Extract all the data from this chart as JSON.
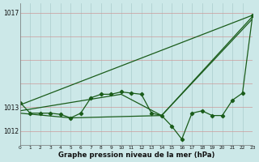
{
  "title": "Graphe pression niveau de la mer (hPa)",
  "bg_color": "#cce8e8",
  "plot_bg_color": "#cce8e8",
  "line_color": "#1a5c1a",
  "grid_color_v": "#aacccc",
  "grid_color_h": "#cc9999",
  "xlim": [
    0,
    23
  ],
  "ylim": [
    1011.4,
    1017.4
  ],
  "series_main": {
    "x": [
      0,
      1,
      2,
      3,
      4,
      5,
      6,
      7,
      8,
      9,
      10,
      11,
      12,
      13,
      14,
      15,
      16,
      17,
      18,
      19,
      20,
      21,
      22,
      23
    ],
    "y": [
      1013.2,
      1012.75,
      1012.75,
      1012.75,
      1012.7,
      1012.55,
      1012.75,
      1013.4,
      1013.55,
      1013.55,
      1013.65,
      1013.6,
      1013.55,
      1012.75,
      1012.65,
      1012.2,
      1011.65,
      1012.75,
      1012.85,
      1012.65,
      1012.65,
      1013.3,
      1013.6,
      1016.9
    ]
  },
  "series_trend1": {
    "x": [
      0,
      23
    ],
    "y": [
      1013.1,
      1016.9
    ]
  },
  "series_trend2": {
    "x": [
      0,
      10,
      14,
      23
    ],
    "y": [
      1012.85,
      1013.55,
      1012.65,
      1016.75
    ]
  },
  "series_trend3": {
    "x": [
      0,
      5,
      14,
      23
    ],
    "y": [
      1012.75,
      1012.55,
      1012.65,
      1016.85
    ]
  },
  "ytick_labels": [
    "1012",
    "1013",
    "1017"
  ],
  "ytick_vals": [
    1012,
    1013,
    1017
  ]
}
